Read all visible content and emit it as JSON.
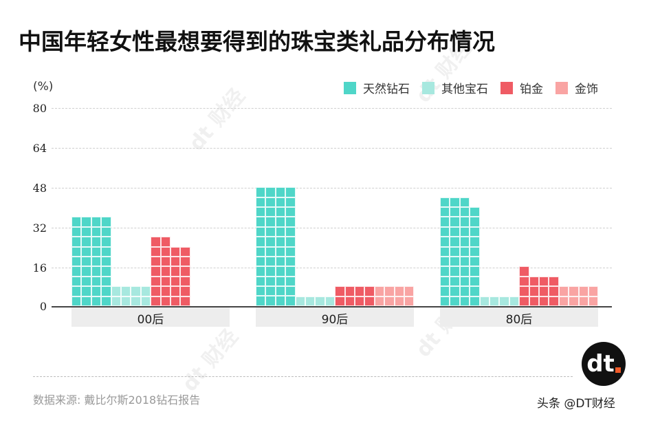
{
  "title": "中国年轻女性最想要得到的珠宝类礼品分布情况",
  "unit": "(%)",
  "legend": [
    {
      "label": "天然钻石",
      "color": "#4fd6c8"
    },
    {
      "label": "其他宝石",
      "color": "#a7e8df"
    },
    {
      "label": "铂金",
      "color": "#ef5b64"
    },
    {
      "label": "金饰",
      "color": "#f9a4a3"
    }
  ],
  "yticks": [
    "80",
    "64",
    "48",
    "32",
    "16",
    "0"
  ],
  "categories": [
    "00后",
    "90后",
    "80后"
  ],
  "source": "数据来源: 戴比尔斯2018钻石报告",
  "logo": {
    "text": "dt"
  },
  "credit": "头条 @DT财经",
  "watermark": "dt 财经",
  "chart_data": {
    "type": "bar",
    "title": "中国年轻女性最想要得到的珠宝类礼品分布情况",
    "xlabel": "",
    "ylabel": "(%)",
    "ylim": [
      0,
      80
    ],
    "yticks": [
      0,
      16,
      32,
      48,
      64,
      80
    ],
    "grid": true,
    "legend_position": "top-right",
    "style": "waffle (each square = 1%)",
    "categories": [
      "00后",
      "90后",
      "80后"
    ],
    "series": [
      {
        "name": "天然钻石",
        "color": "#4fd6c8",
        "values": [
          36,
          48,
          43
        ]
      },
      {
        "name": "其他宝石",
        "color": "#a7e8df",
        "values": [
          8,
          4,
          4
        ]
      },
      {
        "name": "铂金",
        "color": "#ef5b64",
        "values": [
          26,
          8,
          13
        ]
      },
      {
        "name": "金饰",
        "color": "#f9a4a3",
        "values": [
          0,
          8,
          8
        ]
      }
    ],
    "source": "数据来源: 戴比尔斯2018钻石报告"
  }
}
